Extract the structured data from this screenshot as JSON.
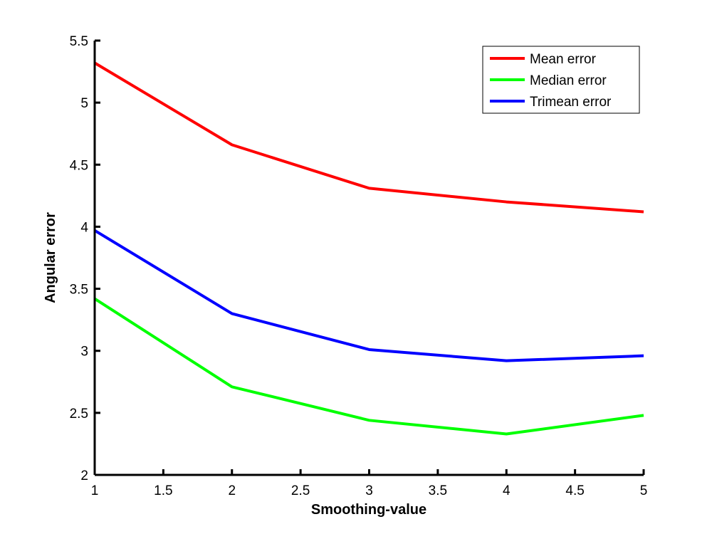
{
  "chart_data": {
    "type": "line",
    "title": "",
    "xlabel": "Smoothing-value",
    "ylabel": "Angular error",
    "xlim": [
      1,
      5
    ],
    "ylim": [
      2,
      5.5
    ],
    "grid": false,
    "legend_position": "top-right",
    "x": [
      1,
      2,
      3,
      4,
      5
    ],
    "x_ticks": [
      1,
      1.5,
      2,
      2.5,
      3,
      3.5,
      4,
      4.5,
      5
    ],
    "x_tick_labels": [
      "1",
      "1.5",
      "2",
      "2.5",
      "3",
      "3.5",
      "4",
      "4.5",
      "5"
    ],
    "y_ticks": [
      2,
      2.5,
      3,
      3.5,
      4,
      4.5,
      5,
      5.5
    ],
    "y_tick_labels": [
      "2",
      "2.5",
      "3",
      "3.5",
      "4",
      "4.5",
      "5",
      "5.5"
    ],
    "series": [
      {
        "name": "Mean error",
        "color": "#ff0000",
        "values": [
          5.32,
          4.66,
          4.31,
          4.2,
          4.12
        ]
      },
      {
        "name": "Median error",
        "color": "#00ff00",
        "values": [
          3.42,
          2.71,
          2.44,
          2.33,
          2.48
        ]
      },
      {
        "name": "Trimean error",
        "color": "#0000ff",
        "values": [
          3.97,
          3.3,
          3.01,
          2.92,
          2.96
        ]
      }
    ]
  }
}
